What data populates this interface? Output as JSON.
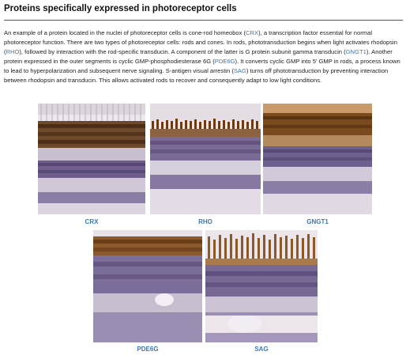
{
  "title": "Proteins specifically expressed in photoreceptor cells",
  "intro": {
    "s1": "An example of a protein located in the nuclei of photoreceptor cells is cone-rod homeobox (",
    "crx": "CRX",
    "s2": "), a transcription factor essential for normal photoreceptor function. There are two types of photoreceptor cells: rods and cones. In rods, phototransduction begins when light activates rhodopsin (",
    "rho": "RHO",
    "s3": "), followed by interaction with the rod-specific transducin. A component of the latter is G protein subunit gamma transducin (",
    "gngt1": "GNGT1",
    "s4": "). Another protein expressed in the outer segments is cyclic GMP-phosphodiesterase 6G (",
    "pde6g": "PDE6G",
    "s5": "). It converts cyclic GMP into 5' GMP in rods, a process known to lead to hyperpolarization and subsequent nerve signaling. S-antigen visual arrestin (",
    "sag": "SAG",
    "s6": ") turns off phototransduction by preventing interaction between rhodopsin and transducin. This allows activated rods to recover and consequently adapt to low light conditions."
  },
  "figures": [
    {
      "label": "CRX"
    },
    {
      "label": "RHO"
    },
    {
      "label": "GNGT1"
    },
    {
      "label": "PDE6G"
    },
    {
      "label": "SAG"
    }
  ]
}
